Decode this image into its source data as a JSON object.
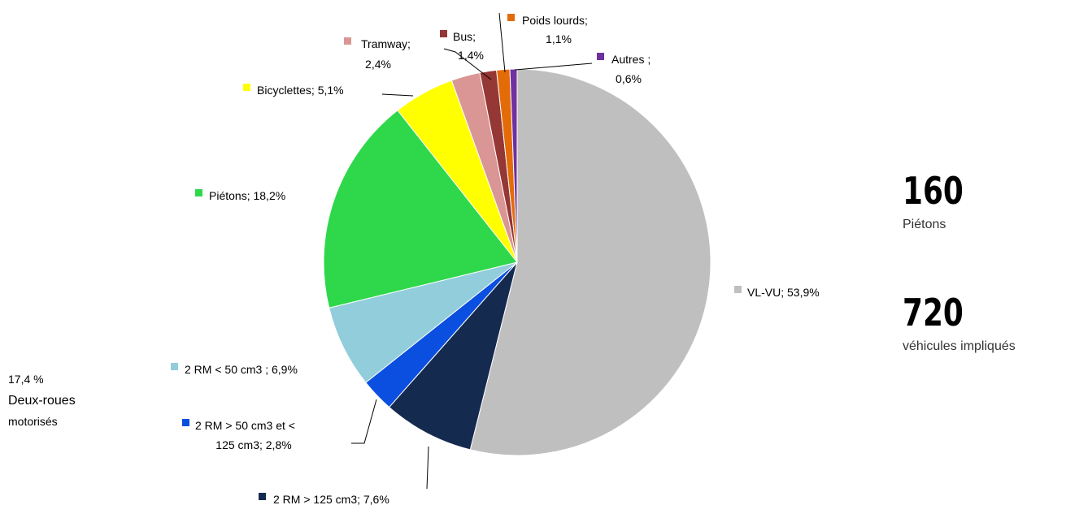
{
  "chart_data": {
    "type": "pie",
    "values": [
      53.9,
      7.6,
      2.8,
      6.9,
      18.2,
      5.1,
      2.4,
      1.4,
      1.1,
      0.6
    ],
    "value_labels": [
      [
        "VL-VU;  53,9%"
      ],
      [
        "2 RM > 125 cm3; 7,6%"
      ],
      [
        "2 RM > 50 cm3 et <",
        "125 cm3; 2,8%"
      ],
      [
        "2 RM < 50 cm3 ; 6,9%"
      ],
      [
        "Piétons;  18,2%"
      ],
      [
        "Bicyclettes; 5,1%"
      ],
      [
        "Tramway;",
        "2,4%"
      ],
      [
        "Bus;",
        "1,4%"
      ],
      [
        "Poids lourds;",
        "1,1%"
      ],
      [
        "Autres ;",
        "0,6%"
      ]
    ],
    "colors": [
      "#bfbfbf",
      "#152a4f",
      "#0b4fe0",
      "#92cddc",
      "#2ed84a",
      "#ffff00",
      "#d99694",
      "#953735",
      "#e36c09",
      "#7030a0"
    ]
  },
  "side": {
    "group_note": [
      "17,4 %",
      "Deux-roues",
      "motorisés"
    ],
    "stats": [
      {
        "number": "160",
        "label": "Piétons"
      },
      {
        "number": "720",
        "label": "véhicules impliqués"
      }
    ]
  }
}
